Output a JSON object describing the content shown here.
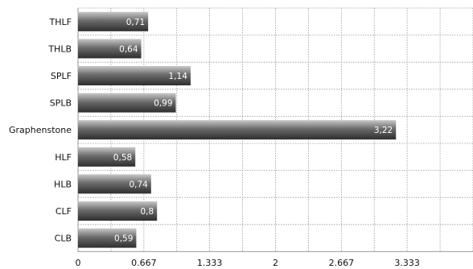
{
  "chart_data": {
    "type": "bar",
    "orientation": "horizontal",
    "categories": [
      "THLF",
      "THLB",
      "SPLF",
      "SPLB",
      "Graphenstone",
      "HLF",
      "HLB",
      "CLF",
      "CLB"
    ],
    "values": [
      0.71,
      0.64,
      1.14,
      0.99,
      3.22,
      0.58,
      0.74,
      0.8,
      0.59
    ],
    "value_labels": [
      "0,71",
      "0,64",
      "1,14",
      "0,99",
      "3,22",
      "0,58",
      "0,74",
      "0,8",
      "0,59"
    ],
    "x_ticks": [
      0,
      0.667,
      1.333,
      2,
      2.667,
      3.333
    ],
    "x_tick_labels": [
      "0",
      "0.667",
      "1.333",
      "2",
      "2.667",
      "3.333"
    ],
    "xlim": [
      0,
      4
    ],
    "grid": true,
    "bar_color": "#6b6b6b",
    "bar_highlight_color": "#c8c8c8",
    "bar_shadow_color": "#2e2e2e",
    "grid_color": "#9a9a9a"
  }
}
